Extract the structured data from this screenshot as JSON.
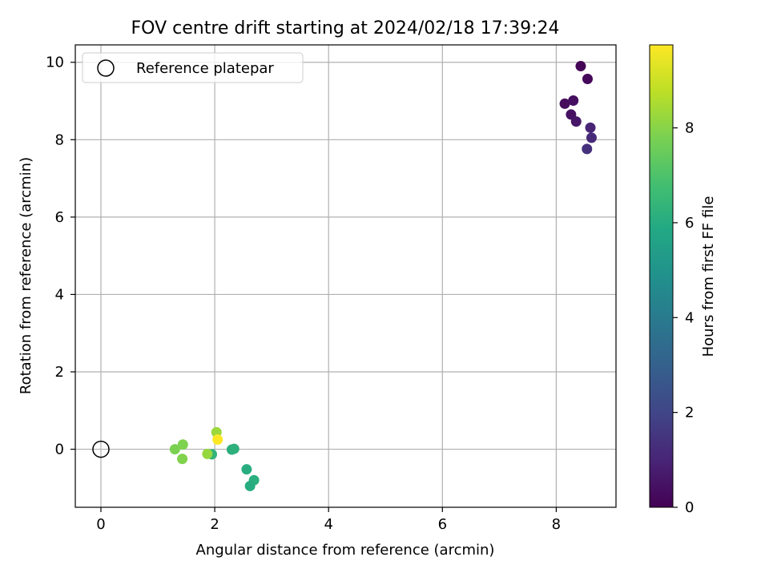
{
  "chart_data": {
    "type": "scatter",
    "title": "FOV centre drift starting at 2024/02/18 17:39:24",
    "xlabel": "Angular distance from reference (arcmin)",
    "ylabel": "Rotation from reference (arcmin)",
    "xlim": [
      -0.45,
      9.05
    ],
    "ylim": [
      -1.5,
      10.45
    ],
    "xticks": [
      0,
      2,
      4,
      6,
      8
    ],
    "yticks": [
      0,
      2,
      4,
      6,
      8,
      10
    ],
    "grid": true,
    "legend": {
      "position": "top-left",
      "entries": [
        "Reference platepar"
      ]
    },
    "reference_point": {
      "x": 0,
      "y": 0,
      "label": "Reference platepar"
    },
    "colorbar": {
      "label": "Hours from first FF file",
      "range": [
        0,
        9.75
      ],
      "ticks": [
        0,
        2,
        4,
        6,
        8
      ],
      "colormap": "viridis"
    },
    "points": [
      {
        "x": 8.43,
        "y": 9.9,
        "hours": 0.1
      },
      {
        "x": 8.55,
        "y": 9.57,
        "hours": 0.2
      },
      {
        "x": 8.15,
        "y": 8.93,
        "hours": 0.3
      },
      {
        "x": 8.3,
        "y": 9.01,
        "hours": 0.35
      },
      {
        "x": 8.26,
        "y": 8.65,
        "hours": 0.45
      },
      {
        "x": 8.35,
        "y": 8.47,
        "hours": 0.6
      },
      {
        "x": 8.6,
        "y": 8.31,
        "hours": 1.0
      },
      {
        "x": 8.62,
        "y": 8.05,
        "hours": 1.15
      },
      {
        "x": 8.54,
        "y": 7.76,
        "hours": 1.35
      },
      {
        "x": 1.95,
        "y": -0.13,
        "hours": 6.3
      },
      {
        "x": 2.3,
        "y": -0.01,
        "hours": 6.1
      },
      {
        "x": 2.34,
        "y": 0.01,
        "hours": 6.2
      },
      {
        "x": 2.56,
        "y": -0.52,
        "hours": 6.05
      },
      {
        "x": 2.69,
        "y": -0.8,
        "hours": 6.15
      },
      {
        "x": 2.62,
        "y": -0.95,
        "hours": 6.0
      },
      {
        "x": 1.3,
        "y": 0.0,
        "hours": 7.8
      },
      {
        "x": 1.44,
        "y": 0.12,
        "hours": 7.85
      },
      {
        "x": 1.43,
        "y": -0.25,
        "hours": 7.9
      },
      {
        "x": 1.87,
        "y": -0.12,
        "hours": 8.2
      },
      {
        "x": 2.03,
        "y": 0.44,
        "hours": 8.3
      },
      {
        "x": 2.05,
        "y": 0.25,
        "hours": 9.75
      }
    ]
  }
}
